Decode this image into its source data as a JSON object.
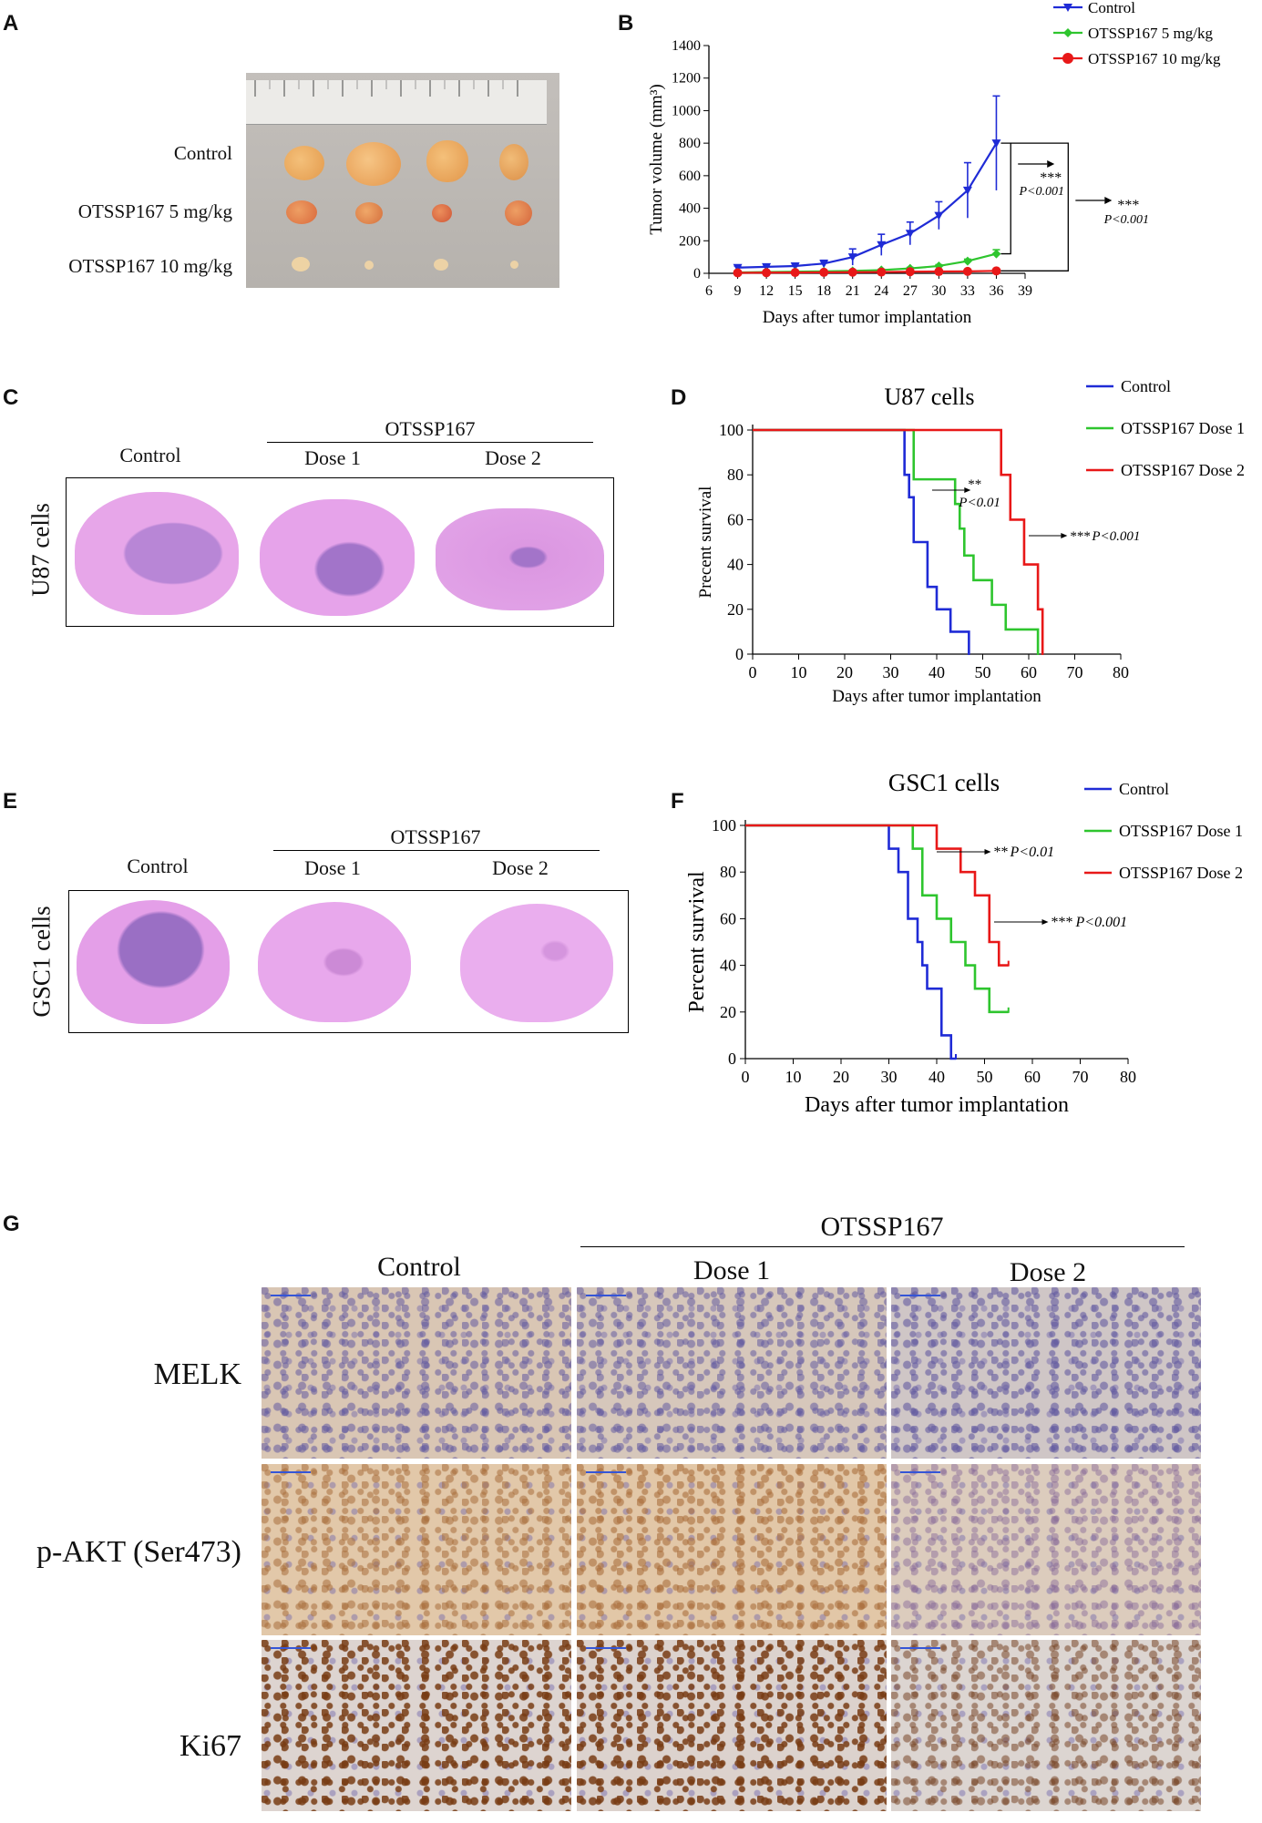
{
  "panels": {
    "a": {
      "label": "A",
      "rows": [
        "Control",
        "OTSSP167 5 mg/kg",
        "OTSSP167 10 mg/kg"
      ]
    },
    "b": {
      "label": "B"
    },
    "c": {
      "label": "C",
      "group": "OTSSP167",
      "cols": [
        "Control",
        "Dose 1",
        "Dose 2"
      ],
      "row": "U87 cells"
    },
    "d": {
      "label": "D"
    },
    "e": {
      "label": "E",
      "group": "OTSSP167",
      "cols": [
        "Control",
        "Dose 1",
        "Dose 2"
      ],
      "row": "GSC1 cells"
    },
    "f": {
      "label": "F"
    },
    "g": {
      "label": "G",
      "group": "OTSSP167",
      "cols": [
        "Control",
        "Dose 1",
        "Dose 2"
      ],
      "rows": [
        "MELK",
        "p-AKT (Ser473)",
        "Ki67"
      ]
    }
  },
  "colors": {
    "blue": "#1f2bd6",
    "green": "#2ec52e",
    "red": "#e81818",
    "tissue": "#e29ae6",
    "tumor": "#a67bcc"
  },
  "chart_data": [
    {
      "id": "B",
      "type": "line",
      "title": "",
      "xlabel": "Days after tumor implantation",
      "ylabel": "Tumor volume (mm³)",
      "xlim": [
        6,
        39
      ],
      "ylim": [
        0,
        1400
      ],
      "xticks": [
        6,
        9,
        12,
        15,
        18,
        21,
        24,
        27,
        30,
        33,
        36,
        39
      ],
      "yticks": [
        0,
        200,
        400,
        600,
        800,
        1000,
        1200,
        1400
      ],
      "x": [
        9,
        12,
        15,
        18,
        21,
        24,
        27,
        30,
        33,
        36
      ],
      "legend": "top-right",
      "series": [
        {
          "name": "Control",
          "color": "#1f2bd6",
          "values": [
            35,
            40,
            45,
            60,
            100,
            175,
            245,
            355,
            510,
            800
          ],
          "err": [
            10,
            12,
            12,
            20,
            50,
            65,
            70,
            85,
            170,
            290
          ]
        },
        {
          "name": "OTSSP167 5 mg/kg",
          "color": "#2ec52e",
          "values": [
            5,
            8,
            10,
            12,
            15,
            20,
            30,
            45,
            75,
            120
          ],
          "err": [
            3,
            3,
            3,
            3,
            4,
            5,
            6,
            8,
            12,
            25
          ]
        },
        {
          "name": "OTSSP167 10 mg/kg",
          "color": "#e81818",
          "values": [
            3,
            4,
            5,
            6,
            7,
            8,
            10,
            11,
            12,
            15
          ],
          "err": [
            1,
            1,
            1,
            1,
            1,
            1,
            2,
            2,
            2,
            3
          ]
        }
      ],
      "annotations": [
        {
          "stars": "***",
          "p": "P<0.001"
        },
        {
          "stars": "***",
          "p": "P<0.001"
        }
      ]
    },
    {
      "id": "D",
      "type": "line",
      "title": "U87 cells",
      "xlabel": "Days after tumor implantation",
      "ylabel": "Precent survival",
      "xlim": [
        0,
        80
      ],
      "ylim": [
        0,
        100
      ],
      "xticks": [
        0,
        10,
        20,
        30,
        40,
        50,
        60,
        70,
        80
      ],
      "yticks": [
        0,
        20,
        40,
        60,
        80,
        100
      ],
      "legend": "right",
      "series": [
        {
          "name": "Control",
          "color": "#1f2bd6",
          "steps": [
            [
              0,
              100
            ],
            [
              33,
              80
            ],
            [
              34,
              70
            ],
            [
              35,
              50
            ],
            [
              38,
              30
            ],
            [
              40,
              20
            ],
            [
              43,
              10
            ],
            [
              47,
              0
            ]
          ]
        },
        {
          "name": "OTSSP167 Dose 1",
          "color": "#2ec52e",
          "steps": [
            [
              0,
              100
            ],
            [
              35,
              78
            ],
            [
              44,
              67
            ],
            [
              45,
              56
            ],
            [
              46,
              44
            ],
            [
              48,
              33
            ],
            [
              52,
              22
            ],
            [
              55,
              11
            ],
            [
              62,
              0
            ]
          ]
        },
        {
          "name": "OTSSP167 Dose 2",
          "color": "#e81818",
          "steps": [
            [
              0,
              100
            ],
            [
              54,
              80
            ],
            [
              56,
              60
            ],
            [
              59,
              40
            ],
            [
              62,
              20
            ],
            [
              63,
              0
            ]
          ]
        }
      ],
      "annotations": [
        {
          "stars": "**",
          "p": "P<0.01"
        },
        {
          "stars": "***",
          "p": "P<0.001"
        }
      ]
    },
    {
      "id": "F",
      "type": "line",
      "title": "GSC1 cells",
      "xlabel": "Days after tumor implantation",
      "ylabel": "Percent survival",
      "xlim": [
        0,
        80
      ],
      "ylim": [
        0,
        100
      ],
      "xticks": [
        0,
        10,
        20,
        30,
        40,
        50,
        60,
        70,
        80
      ],
      "yticks": [
        0,
        20,
        40,
        60,
        80,
        100
      ],
      "legend": "right",
      "series": [
        {
          "name": "Control",
          "color": "#1f2bd6",
          "steps": [
            [
              0,
              100
            ],
            [
              30,
              90
            ],
            [
              32,
              80
            ],
            [
              34,
              60
            ],
            [
              36,
              50
            ],
            [
              37,
              40
            ],
            [
              38,
              30
            ],
            [
              41,
              10
            ],
            [
              43,
              0
            ],
            [
              44,
              0
            ]
          ]
        },
        {
          "name": "OTSSP167 Dose 1",
          "color": "#2ec52e",
          "steps": [
            [
              0,
              100
            ],
            [
              35,
              90
            ],
            [
              37,
              70
            ],
            [
              40,
              60
            ],
            [
              43,
              50
            ],
            [
              46,
              40
            ],
            [
              48,
              30
            ],
            [
              51,
              20
            ],
            [
              55,
              20
            ]
          ]
        },
        {
          "name": "OTSSP167 Dose 2",
          "color": "#e81818",
          "steps": [
            [
              0,
              100
            ],
            [
              40,
              90
            ],
            [
              45,
              80
            ],
            [
              48,
              70
            ],
            [
              51,
              50
            ],
            [
              53,
              40
            ],
            [
              55,
              40
            ]
          ]
        }
      ],
      "annotations": [
        {
          "stars": "**",
          "p": "P<0.01"
        },
        {
          "stars": "***",
          "p": "P<0.001"
        }
      ]
    }
  ]
}
